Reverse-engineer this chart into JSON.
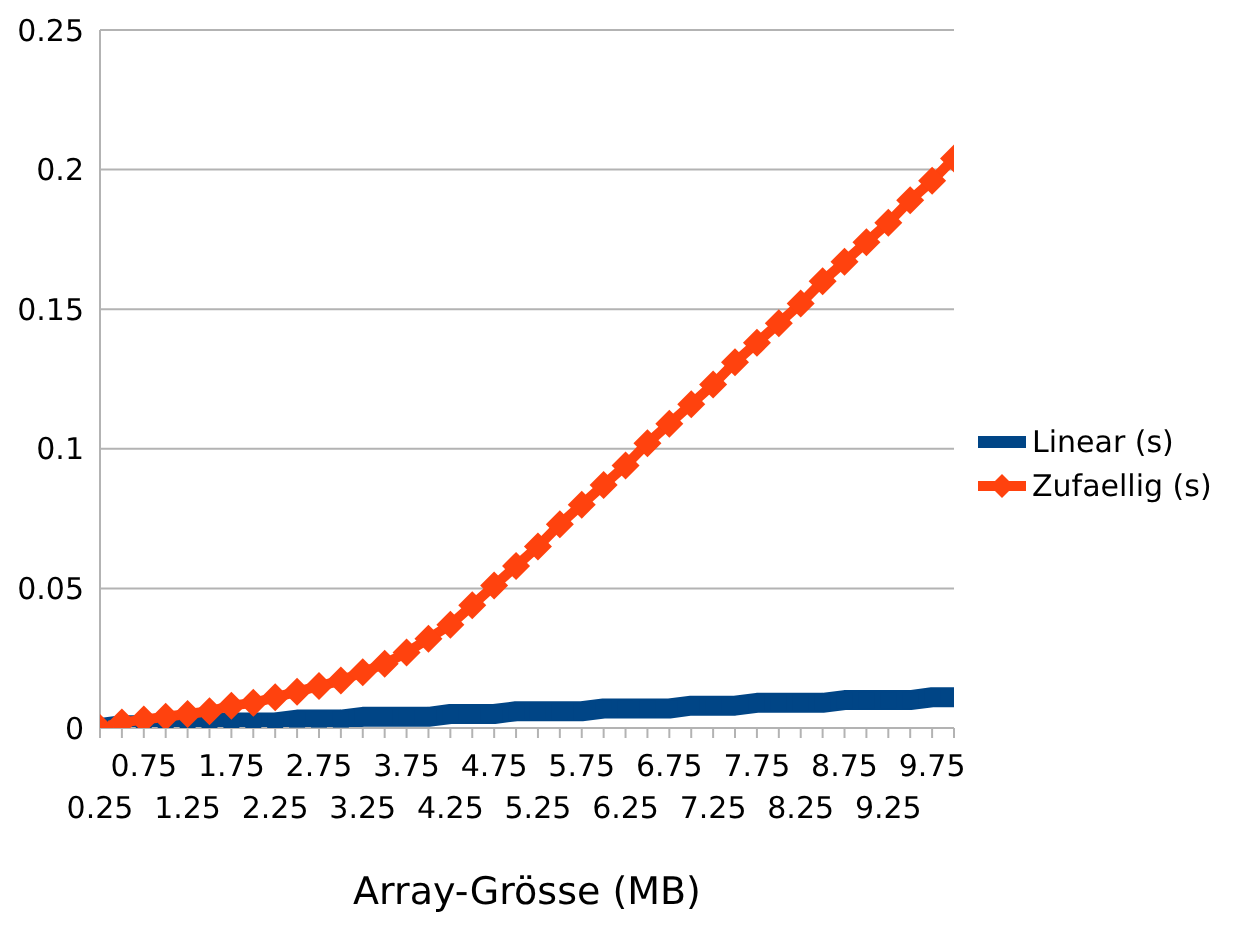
{
  "chart_data": {
    "type": "line",
    "xlabel": "Array-Grösse (MB)",
    "categories": [
      "0.25",
      null,
      "0.75",
      null,
      "1.25",
      null,
      "1.75",
      null,
      "2.25",
      null,
      "2.75",
      null,
      "3.25",
      null,
      "3.75",
      null,
      "4.25",
      null,
      "4.75",
      null,
      "5.25",
      null,
      "5.75",
      null,
      "6.25",
      null,
      "6.75",
      null,
      "7.25",
      null,
      "7.75",
      null,
      "8.25",
      null,
      "8.75",
      null,
      "9.25",
      null,
      "9.75",
      null
    ],
    "series": [
      {
        "name": "Linear (s)",
        "color": "#004586",
        "marker": "square",
        "values": [
          0.0,
          0.001,
          0.001,
          0.001,
          0.001,
          0.002,
          0.002,
          0.002,
          0.002,
          0.003,
          0.003,
          0.003,
          0.004,
          0.004,
          0.004,
          0.004,
          0.005,
          0.005,
          0.005,
          0.006,
          0.006,
          0.006,
          0.006,
          0.007,
          0.007,
          0.007,
          0.007,
          0.008,
          0.008,
          0.008,
          0.009,
          0.009,
          0.009,
          0.009,
          0.01,
          0.01,
          0.01,
          0.01,
          0.011,
          0.011
        ]
      },
      {
        "name": "Zufaellig (s)",
        "color": "#ff420e",
        "marker": "diamond",
        "values": [
          0.0,
          0.002,
          0.003,
          0.004,
          0.005,
          0.006,
          0.008,
          0.009,
          0.011,
          0.013,
          0.015,
          0.017,
          0.02,
          0.023,
          0.027,
          0.032,
          0.037,
          0.044,
          0.051,
          0.058,
          0.065,
          0.073,
          0.08,
          0.087,
          0.094,
          0.102,
          0.109,
          0.116,
          0.123,
          0.131,
          0.138,
          0.145,
          0.152,
          0.16,
          0.167,
          0.174,
          0.181,
          0.189,
          0.196,
          0.204
        ]
      }
    ],
    "ylim": [
      0,
      0.25
    ],
    "yticks": [
      0,
      0.05,
      0.1,
      0.15,
      0.2,
      0.25
    ],
    "grid": "y",
    "legend": "right",
    "line_style": "solid"
  }
}
